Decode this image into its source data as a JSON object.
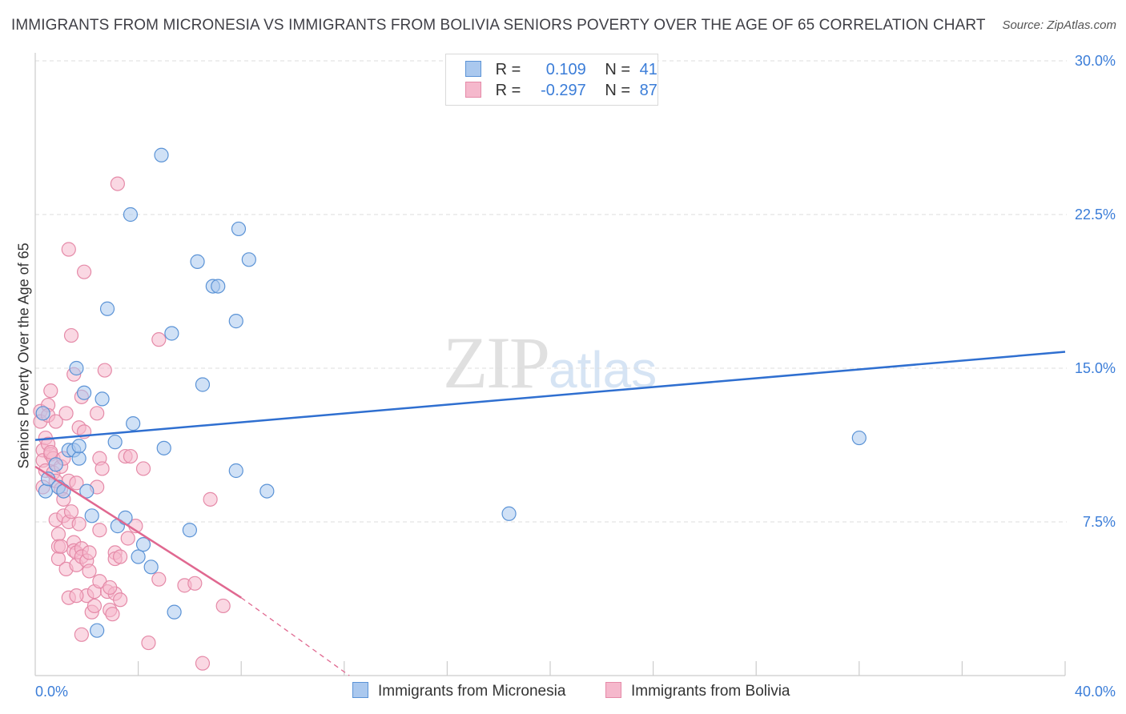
{
  "title": "IMMIGRANTS FROM MICRONESIA VS IMMIGRANTS FROM BOLIVIA SENIORS POVERTY OVER THE AGE OF 65 CORRELATION CHART",
  "source": "Source: ZipAtlas.com",
  "watermark": {
    "zip": "ZIP",
    "atlas": "atlas"
  },
  "legend": {
    "rows": [
      {
        "r_label": "R =",
        "r_value": "0.109",
        "n_label": "N =",
        "n_value": "41"
      },
      {
        "r_label": "R =",
        "r_value": "-0.297",
        "n_label": "N =",
        "n_value": "87"
      }
    ]
  },
  "colors": {
    "micronesia_fill": "#aac8ee",
    "micronesia_stroke": "#5b93d6",
    "micronesia_line": "#2f6fd0",
    "bolivia_fill": "#f5b8cc",
    "bolivia_stroke": "#e58aa8",
    "bolivia_line": "#e06890",
    "axis_label": "#3b7dd8",
    "grid": "#dddddd"
  },
  "chart_data": {
    "type": "scatter",
    "title": "IMMIGRANTS FROM MICRONESIA VS IMMIGRANTS FROM BOLIVIA SENIORS POVERTY OVER THE AGE OF 65 CORRELATION CHART",
    "xlabel": "",
    "ylabel": "Seniors Poverty Over the Age of 65",
    "xlim": [
      0,
      40
    ],
    "ylim": [
      0,
      30
    ],
    "x_tick_labels": [
      "0.0%",
      "40.0%"
    ],
    "y_ticks": [
      7.5,
      15.0,
      22.5,
      30.0
    ],
    "y_tick_labels": [
      "7.5%",
      "15.0%",
      "22.5%",
      "30.0%"
    ],
    "grid": true,
    "legend_position": "top-center",
    "series": [
      {
        "name": "Immigrants from Micronesia",
        "points": [
          [
            0.3,
            12.8
          ],
          [
            0.4,
            9.0
          ],
          [
            0.5,
            9.6
          ],
          [
            0.8,
            10.3
          ],
          [
            0.9,
            9.2
          ],
          [
            1.1,
            9.0
          ],
          [
            1.3,
            11.0
          ],
          [
            1.5,
            11.0
          ],
          [
            1.6,
            15.0
          ],
          [
            1.7,
            10.6
          ],
          [
            1.7,
            11.2
          ],
          [
            1.9,
            13.8
          ],
          [
            2.0,
            9.0
          ],
          [
            2.2,
            7.8
          ],
          [
            2.6,
            13.5
          ],
          [
            2.8,
            17.9
          ],
          [
            3.1,
            11.4
          ],
          [
            3.2,
            7.3
          ],
          [
            3.5,
            7.7
          ],
          [
            3.7,
            22.5
          ],
          [
            3.8,
            12.3
          ],
          [
            4.0,
            5.8
          ],
          [
            4.2,
            6.4
          ],
          [
            4.5,
            5.3
          ],
          [
            4.9,
            25.4
          ],
          [
            5.3,
            16.7
          ],
          [
            5.4,
            3.1
          ],
          [
            6.0,
            7.1
          ],
          [
            6.3,
            20.2
          ],
          [
            6.5,
            14.2
          ],
          [
            6.9,
            19.0
          ],
          [
            7.1,
            19.0
          ],
          [
            7.8,
            17.3
          ],
          [
            7.9,
            21.8
          ],
          [
            8.3,
            20.3
          ],
          [
            7.8,
            10.0
          ],
          [
            9.0,
            9.0
          ],
          [
            18.4,
            7.9
          ],
          [
            32.0,
            11.6
          ],
          [
            5.0,
            11.1
          ],
          [
            2.4,
            2.2
          ]
        ],
        "trend": {
          "x": [
            0,
            40
          ],
          "y": [
            11.5,
            15.8
          ]
        }
      },
      {
        "name": "Immigrants from Bolivia",
        "points": [
          [
            0.2,
            12.9
          ],
          [
            0.2,
            12.4
          ],
          [
            0.3,
            11.0
          ],
          [
            0.3,
            10.5
          ],
          [
            0.4,
            11.6
          ],
          [
            0.4,
            10.0
          ],
          [
            0.5,
            13.2
          ],
          [
            0.5,
            12.7
          ],
          [
            0.5,
            11.3
          ],
          [
            0.6,
            13.9
          ],
          [
            0.6,
            10.8
          ],
          [
            0.7,
            10.6
          ],
          [
            0.7,
            9.9
          ],
          [
            0.8,
            12.4
          ],
          [
            0.8,
            9.5
          ],
          [
            0.8,
            7.6
          ],
          [
            0.9,
            6.9
          ],
          [
            0.9,
            6.3
          ],
          [
            0.9,
            5.7
          ],
          [
            1.0,
            10.2
          ],
          [
            1.0,
            9.1
          ],
          [
            1.0,
            6.3
          ],
          [
            1.1,
            8.6
          ],
          [
            1.1,
            7.8
          ],
          [
            1.2,
            12.8
          ],
          [
            1.2,
            5.2
          ],
          [
            1.3,
            20.8
          ],
          [
            1.3,
            9.5
          ],
          [
            1.3,
            7.5
          ],
          [
            1.3,
            3.8
          ],
          [
            1.4,
            16.6
          ],
          [
            1.4,
            8.0
          ],
          [
            1.5,
            6.5
          ],
          [
            1.5,
            6.1
          ],
          [
            1.5,
            14.7
          ],
          [
            1.6,
            9.4
          ],
          [
            1.6,
            6.0
          ],
          [
            1.6,
            5.4
          ],
          [
            1.7,
            12.1
          ],
          [
            1.7,
            7.4
          ],
          [
            1.8,
            13.6
          ],
          [
            1.8,
            6.2
          ],
          [
            1.8,
            5.8
          ],
          [
            1.8,
            2.0
          ],
          [
            1.9,
            19.7
          ],
          [
            1.9,
            11.9
          ],
          [
            2.0,
            5.6
          ],
          [
            2.0,
            3.9
          ],
          [
            2.1,
            5.1
          ],
          [
            2.1,
            6.0
          ],
          [
            2.2,
            3.1
          ],
          [
            2.3,
            4.1
          ],
          [
            2.3,
            3.4
          ],
          [
            2.4,
            12.8
          ],
          [
            2.4,
            9.2
          ],
          [
            2.5,
            10.6
          ],
          [
            2.5,
            7.1
          ],
          [
            2.5,
            4.6
          ],
          [
            2.6,
            10.1
          ],
          [
            2.7,
            14.9
          ],
          [
            2.8,
            4.1
          ],
          [
            2.9,
            3.2
          ],
          [
            3.0,
            3.0
          ],
          [
            3.1,
            6.0
          ],
          [
            3.1,
            5.7
          ],
          [
            3.1,
            4.0
          ],
          [
            3.2,
            24.0
          ],
          [
            3.3,
            5.8
          ],
          [
            3.5,
            10.7
          ],
          [
            3.6,
            6.7
          ],
          [
            3.7,
            10.7
          ],
          [
            3.9,
            7.3
          ],
          [
            4.2,
            10.1
          ],
          [
            4.4,
            1.6
          ],
          [
            4.8,
            16.4
          ],
          [
            4.8,
            4.7
          ],
          [
            5.8,
            4.4
          ],
          [
            6.2,
            4.5
          ],
          [
            6.5,
            0.6
          ],
          [
            6.8,
            8.6
          ],
          [
            7.3,
            3.4
          ],
          [
            0.3,
            9.2
          ],
          [
            1.1,
            10.6
          ],
          [
            2.9,
            4.3
          ],
          [
            1.6,
            3.9
          ],
          [
            3.3,
            3.7
          ],
          [
            0.6,
            10.9
          ]
        ],
        "trend": {
          "x": [
            0,
            8.0
          ],
          "y": [
            10.2,
            3.8
          ]
        },
        "trend_extension": {
          "x": [
            8.0,
            12.2
          ],
          "y": [
            3.8,
            0.0
          ]
        }
      }
    ]
  },
  "x_axis": {
    "min_label": "0.0%",
    "max_label": "40.0%"
  },
  "bottom_legend": {
    "micronesia": "Immigrants from Micronesia",
    "bolivia": "Immigrants from Bolivia"
  }
}
